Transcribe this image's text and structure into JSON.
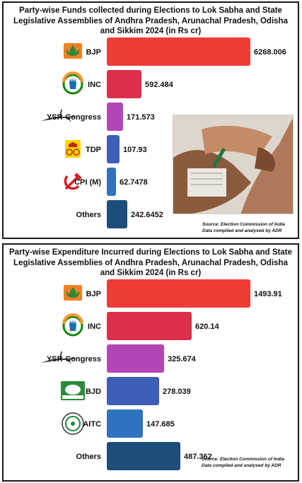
{
  "charts": [
    {
      "title_lines": [
        "Party-wise Funds collected during Elections to Lok Sabha and State",
        "Legislative Assemblies of Andhra Pradesh, Arunachal Pradesh, Odisha",
        "and Sikkim 2024 (in Rs cr)"
      ],
      "source_lines": [
        "Source: Election Commission of India",
        "Data compiled and analysed by ADR"
      ]
    },
    {
      "title_lines": [
        "Party-wise Expenditure Incurred during Elections to Lok Sabha and State",
        "Legislative Assemblies of Andhra Pradesh, Arunachal Pradesh, Odisha",
        "and Sikkim 2024 (in Rs cr)"
      ],
      "source_lines": [
        "Source: Election Commission of India",
        "Data compiled and analysed by ADR"
      ]
    }
  ],
  "chart_data": [
    {
      "type": "bar",
      "orientation": "horizontal",
      "title": "Party-wise Funds collected during Elections to Lok Sabha and State Legislative Assemblies of Andhra Pradesh, Arunachal Pradesh, Odisha and Sikkim 2024 (in Rs cr)",
      "categories": [
        "BJP",
        "INC",
        "YSR-Congress",
        "TDP",
        "CPI (M)",
        "Others"
      ],
      "values": [
        6268.006,
        592.484,
        171.573,
        107.93,
        62.7478,
        242.6452
      ],
      "value_labels": [
        "6268.006",
        "592.484",
        "171.573",
        "107.93",
        "62.7478",
        "242.6452"
      ],
      "colors": [
        "#ef3b36",
        "#dc2f4b",
        "#b246b7",
        "#3d5fb8",
        "#2f72c0",
        "#1d4d78"
      ],
      "icons": [
        "bjp-lotus-icon",
        "inc-hand-icon",
        "ysrcp-fan-icon",
        "tdp-cycle-icon",
        "cpim-hammer-sickle-icon",
        ""
      ],
      "scale": "nonlinear-emphasis"
    },
    {
      "type": "bar",
      "orientation": "horizontal",
      "title": "Party-wise Expenditure Incurred during Elections to Lok Sabha and State Legislative Assemblies of Andhra Pradesh, Arunachal Pradesh, Odisha and Sikkim 2024 (in Rs cr)",
      "categories": [
        "BJP",
        "INC",
        "YSR-Congress",
        "BJD",
        "AITC",
        "Others"
      ],
      "values": [
        1493.91,
        620.14,
        325.674,
        278.039,
        147.685,
        487.362
      ],
      "value_labels": [
        "1493.91",
        "620.14",
        "325.674",
        "278.039",
        "147.685",
        "487.362"
      ],
      "colors": [
        "#ef3b36",
        "#dc2f4b",
        "#b246b7",
        "#3d5fb8",
        "#2f72c0",
        "#1d4d78"
      ],
      "icons": [
        "bjp-lotus-icon",
        "inc-hand-icon",
        "ysrcp-fan-icon",
        "bjd-conch-icon",
        "aitc-flower-icon",
        ""
      ],
      "scale": "nonlinear-emphasis"
    }
  ]
}
